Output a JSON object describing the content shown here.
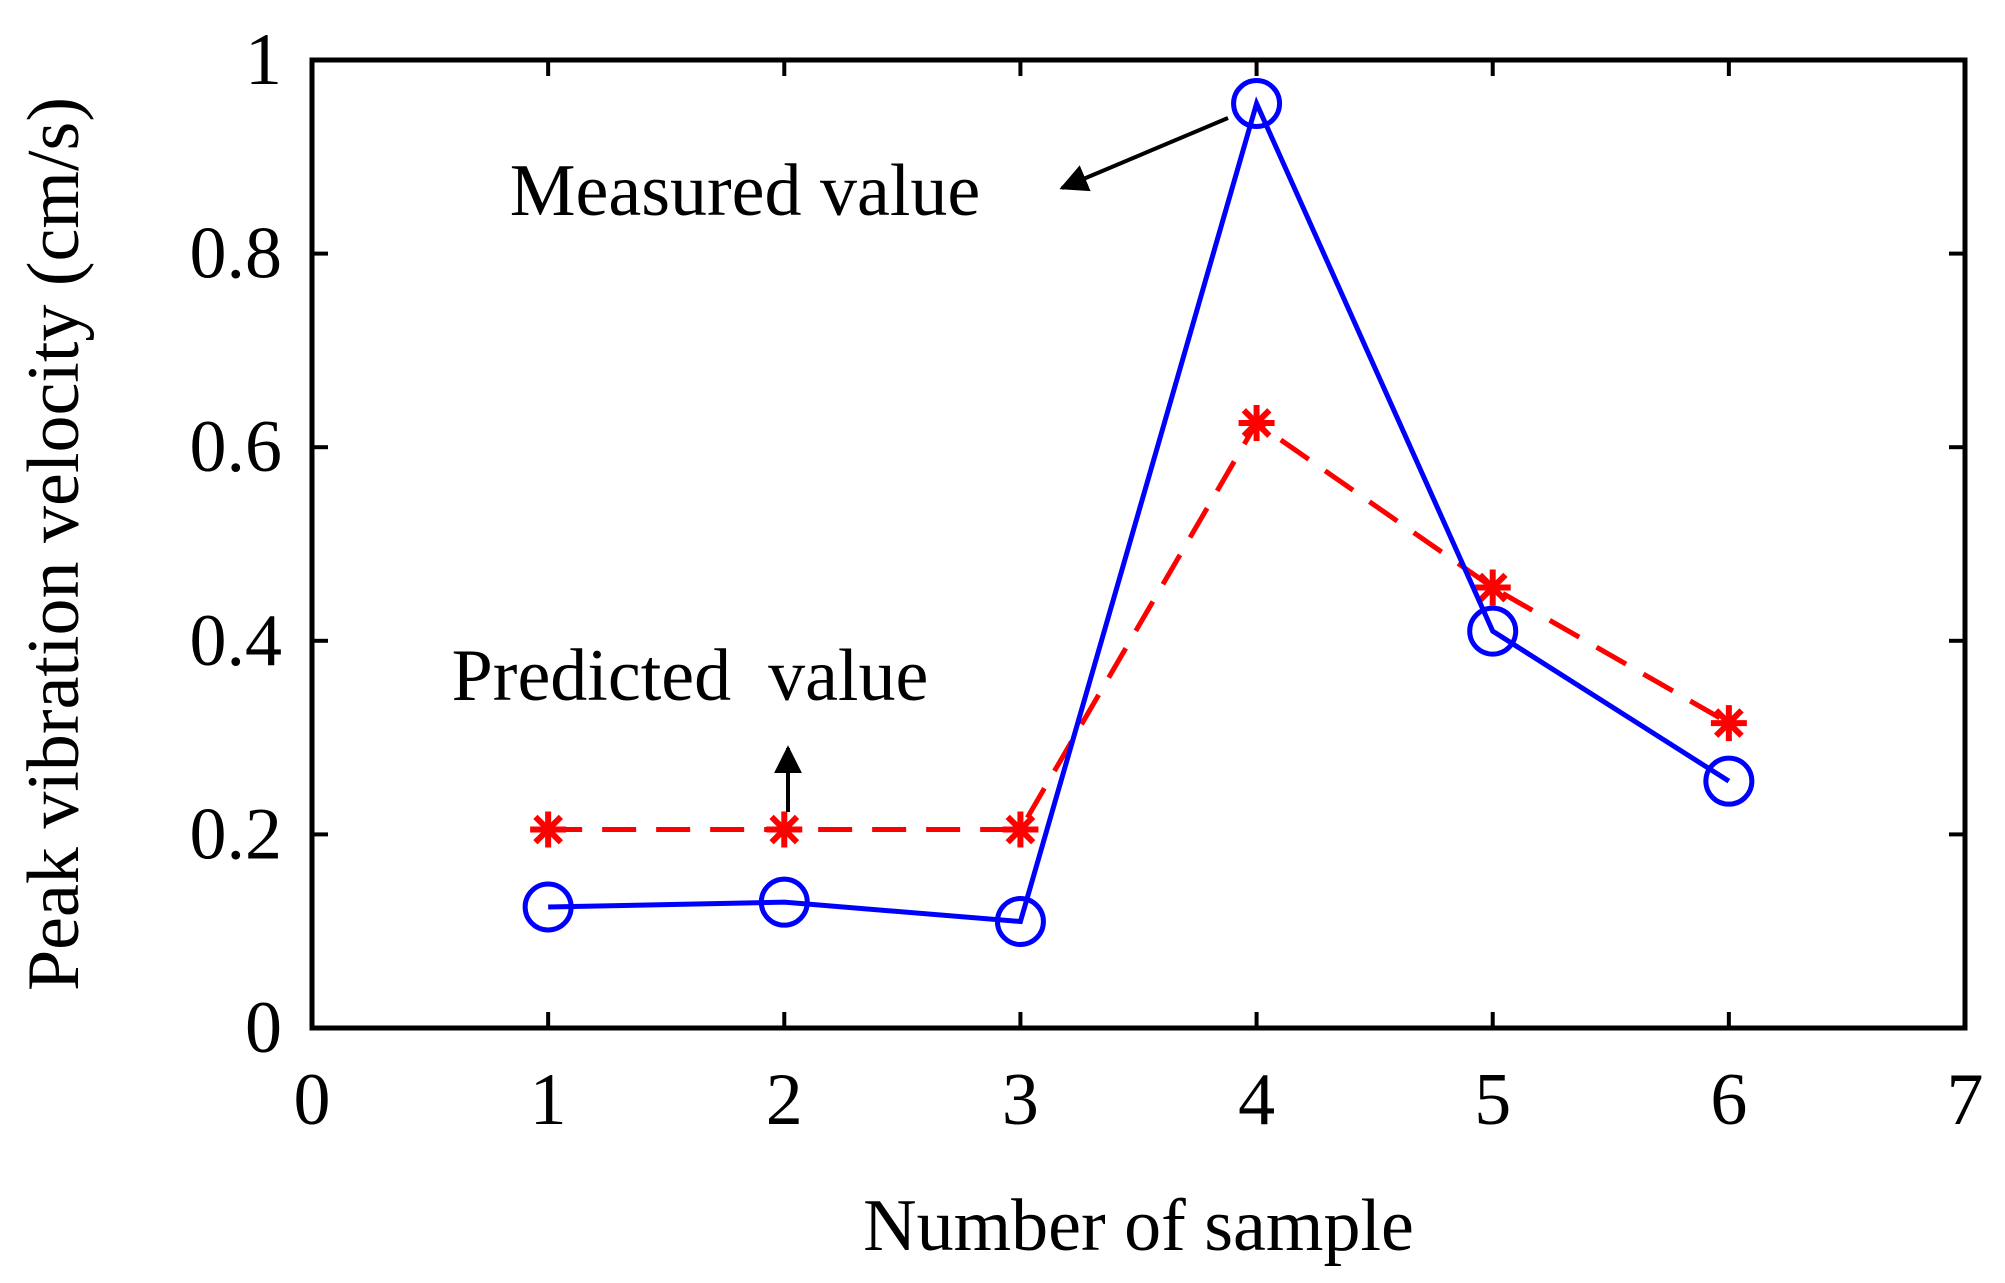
{
  "chart_data": {
    "type": "line",
    "xlabel": "Number of sample",
    "ylabel": "Peak vibration velocity (cm/s)",
    "xlim": [
      0,
      7
    ],
    "ylim": [
      0,
      1
    ],
    "xticks": [
      "0",
      "1",
      "2",
      "3",
      "4",
      "5",
      "6",
      "7"
    ],
    "yticks": [
      "0",
      "0.2",
      "0.4",
      "0.6",
      "0.8",
      "1"
    ],
    "grid": false,
    "x": [
      1,
      2,
      3,
      4,
      5,
      6
    ],
    "series": [
      {
        "name": "Measured value",
        "values": [
          0.125,
          0.13,
          0.11,
          0.955,
          0.41,
          0.255
        ],
        "color": "#0000ff",
        "line_style": "solid",
        "marker": "circle"
      },
      {
        "name": "Predicted value",
        "values": [
          0.205,
          0.205,
          0.205,
          0.625,
          0.455,
          0.315
        ],
        "color": "#ff0000",
        "line_style": "dashed",
        "marker": "asterisk"
      }
    ],
    "annotations": [
      {
        "text": "Measured value",
        "points_to": {
          "x": 4,
          "y": 0.955
        }
      },
      {
        "text": "Predicted  value",
        "points_to": {
          "x": 2,
          "y": 0.205
        }
      }
    ]
  }
}
